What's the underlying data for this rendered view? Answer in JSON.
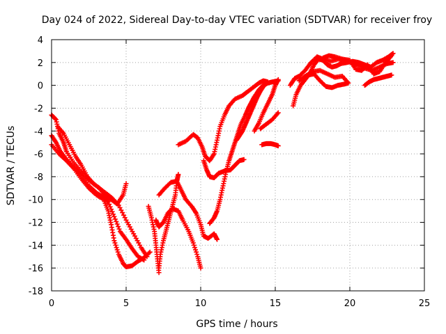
{
  "chart_data": {
    "type": "scatter",
    "title": "Day 024 of 2022, Sidereal Day-to-day VTEC variation (SDTVAR) for receiver froy",
    "xlabel": "GPS time / hours",
    "ylabel": "SDTVAR / TECUs",
    "xlim": [
      0,
      25
    ],
    "ylim": [
      -18,
      4
    ],
    "xticks": [
      0,
      5,
      10,
      15,
      20,
      25
    ],
    "yticks": [
      -18,
      -16,
      -14,
      -12,
      -10,
      -8,
      -6,
      -4,
      -2,
      0,
      2,
      4
    ],
    "grid": true,
    "marker": "+",
    "color": "#ff0000",
    "series": [
      {
        "points": [
          [
            0.0,
            -2.6
          ],
          [
            0.3,
            -3.0
          ],
          [
            0.5,
            -4.2
          ],
          [
            0.8,
            -5.0
          ],
          [
            1.0,
            -5.8
          ],
          [
            1.5,
            -6.8
          ],
          [
            2.0,
            -7.6
          ],
          [
            2.5,
            -8.3
          ],
          [
            3.0,
            -8.8
          ],
          [
            3.5,
            -9.3
          ],
          [
            4.0,
            -9.8
          ],
          [
            4.5,
            -10.5
          ],
          [
            5.0,
            -11.8
          ],
          [
            5.5,
            -13.0
          ],
          [
            6.0,
            -14.2
          ],
          [
            6.4,
            -15.0
          ]
        ]
      },
      {
        "points": [
          [
            0.0,
            -4.4
          ],
          [
            0.3,
            -5.0
          ],
          [
            0.6,
            -5.8
          ],
          [
            1.0,
            -6.5
          ],
          [
            1.5,
            -7.2
          ],
          [
            2.0,
            -7.9
          ],
          [
            2.5,
            -8.8
          ],
          [
            3.0,
            -9.4
          ],
          [
            3.5,
            -9.8
          ],
          [
            3.8,
            -10.2
          ],
          [
            4.2,
            -11.5
          ],
          [
            4.6,
            -12.8
          ],
          [
            5.0,
            -13.5
          ],
          [
            5.4,
            -14.3
          ],
          [
            5.8,
            -15.0
          ],
          [
            6.2,
            -15.3
          ]
        ]
      },
      {
        "points": [
          [
            0.0,
            -5.2
          ],
          [
            0.5,
            -6.0
          ],
          [
            1.0,
            -6.6
          ],
          [
            1.5,
            -7.3
          ],
          [
            2.0,
            -8.2
          ],
          [
            2.5,
            -9.0
          ],
          [
            3.0,
            -9.6
          ],
          [
            3.5,
            -10.0
          ],
          [
            3.8,
            -11.0
          ],
          [
            4.0,
            -12.2
          ],
          [
            4.2,
            -13.6
          ],
          [
            4.5,
            -14.8
          ],
          [
            4.8,
            -15.6
          ],
          [
            5.0,
            -15.9
          ],
          [
            5.4,
            -15.8
          ],
          [
            5.8,
            -15.4
          ],
          [
            6.2,
            -15.1
          ],
          [
            6.6,
            -14.6
          ]
        ]
      },
      {
        "points": [
          [
            0.4,
            -3.6
          ],
          [
            0.8,
            -4.2
          ],
          [
            1.2,
            -5.2
          ],
          [
            1.6,
            -6.2
          ],
          [
            2.0,
            -7.0
          ],
          [
            2.4,
            -8.0
          ],
          [
            2.8,
            -8.6
          ],
          [
            3.2,
            -9.0
          ],
          [
            3.6,
            -9.6
          ],
          [
            4.0,
            -10.0
          ],
          [
            4.4,
            -10.4
          ],
          [
            4.8,
            -9.6
          ],
          [
            5.0,
            -8.6
          ]
        ]
      },
      {
        "points": [
          [
            6.5,
            -10.6
          ],
          [
            6.7,
            -11.6
          ],
          [
            6.9,
            -12.8
          ],
          [
            7.0,
            -14.0
          ],
          [
            7.1,
            -15.2
          ],
          [
            7.2,
            -16.4
          ]
        ]
      },
      {
        "points": [
          [
            7.2,
            -16.0
          ],
          [
            7.3,
            -14.8
          ],
          [
            7.5,
            -13.6
          ],
          [
            7.7,
            -12.6
          ],
          [
            7.9,
            -11.6
          ],
          [
            8.1,
            -10.6
          ],
          [
            8.3,
            -9.6
          ],
          [
            8.4,
            -8.4
          ],
          [
            8.5,
            -7.8
          ]
        ]
      },
      {
        "points": [
          [
            7.0,
            -11.8
          ],
          [
            7.2,
            -12.4
          ],
          [
            7.5,
            -12.0
          ],
          [
            7.8,
            -11.2
          ],
          [
            8.1,
            -10.8
          ],
          [
            8.5,
            -11.0
          ],
          [
            8.8,
            -11.8
          ],
          [
            9.2,
            -12.8
          ],
          [
            9.5,
            -13.8
          ],
          [
            9.8,
            -15.0
          ],
          [
            10.0,
            -16.0
          ]
        ]
      },
      {
        "points": [
          [
            7.2,
            -9.6
          ],
          [
            7.6,
            -9.0
          ],
          [
            8.0,
            -8.5
          ],
          [
            8.4,
            -8.4
          ],
          [
            8.7,
            -9.2
          ],
          [
            9.0,
            -10.0
          ],
          [
            9.4,
            -10.6
          ],
          [
            9.7,
            -11.2
          ],
          [
            10.0,
            -12.2
          ],
          [
            10.2,
            -13.2
          ],
          [
            10.5,
            -13.4
          ],
          [
            10.9,
            -13.0
          ],
          [
            11.1,
            -13.5
          ]
        ]
      },
      {
        "points": [
          [
            8.5,
            -5.2
          ],
          [
            9.0,
            -4.9
          ],
          [
            9.5,
            -4.3
          ],
          [
            9.8,
            -4.6
          ],
          [
            10.1,
            -5.4
          ],
          [
            10.3,
            -6.2
          ],
          [
            10.6,
            -6.6
          ],
          [
            10.9,
            -6.0
          ],
          [
            11.1,
            -4.8
          ],
          [
            11.3,
            -3.6
          ],
          [
            11.6,
            -2.6
          ],
          [
            11.9,
            -1.8
          ],
          [
            12.3,
            -1.2
          ],
          [
            12.8,
            -0.9
          ],
          [
            13.1,
            -0.6
          ],
          [
            13.5,
            -0.2
          ],
          [
            13.9,
            0.2
          ],
          [
            14.2,
            0.4
          ],
          [
            14.5,
            0.3
          ]
        ]
      },
      {
        "points": [
          [
            10.2,
            -6.6
          ],
          [
            10.4,
            -7.4
          ],
          [
            10.6,
            -8.0
          ],
          [
            10.9,
            -8.1
          ],
          [
            11.2,
            -7.7
          ],
          [
            11.6,
            -7.5
          ],
          [
            12.0,
            -7.4
          ],
          [
            12.3,
            -7.0
          ],
          [
            12.6,
            -6.6
          ],
          [
            12.9,
            -6.5
          ]
        ]
      },
      {
        "points": [
          [
            10.6,
            -12.1
          ],
          [
            10.9,
            -11.6
          ],
          [
            11.1,
            -11.0
          ],
          [
            11.3,
            -10.0
          ],
          [
            11.5,
            -8.8
          ],
          [
            11.7,
            -7.6
          ],
          [
            11.9,
            -6.6
          ],
          [
            12.1,
            -5.8
          ],
          [
            12.3,
            -5.0
          ],
          [
            12.5,
            -4.2
          ],
          [
            12.7,
            -3.4
          ],
          [
            13.0,
            -2.6
          ],
          [
            13.2,
            -2.0
          ],
          [
            13.4,
            -1.5
          ],
          [
            13.6,
            -1.0
          ],
          [
            13.9,
            -0.4
          ],
          [
            14.2,
            0.0
          ],
          [
            14.5,
            0.2
          ],
          [
            14.8,
            0.3
          ],
          [
            15.2,
            0.4
          ]
        ]
      },
      {
        "points": [
          [
            12.4,
            -4.8
          ],
          [
            12.6,
            -4.4
          ],
          [
            12.8,
            -4.0
          ],
          [
            13.0,
            -3.4
          ],
          [
            13.2,
            -2.8
          ],
          [
            13.4,
            -2.2
          ],
          [
            13.6,
            -1.6
          ],
          [
            13.8,
            -1.0
          ],
          [
            14.0,
            -0.5
          ],
          [
            14.2,
            -0.1
          ],
          [
            14.4,
            0.2
          ]
        ]
      },
      {
        "points": [
          [
            13.6,
            -4.0
          ],
          [
            13.9,
            -3.3
          ],
          [
            14.2,
            -2.4
          ],
          [
            14.5,
            -1.6
          ],
          [
            14.8,
            -0.8
          ],
          [
            15.0,
            0.0
          ],
          [
            15.2,
            0.5
          ]
        ]
      },
      {
        "points": [
          [
            14.1,
            -5.2
          ],
          [
            14.4,
            -5.1
          ],
          [
            14.7,
            -5.1
          ],
          [
            15.0,
            -5.2
          ],
          [
            15.2,
            -5.3
          ]
        ]
      },
      {
        "points": [
          [
            14.0,
            -3.8
          ],
          [
            14.4,
            -3.4
          ],
          [
            14.8,
            -3.0
          ],
          [
            15.2,
            -2.4
          ]
        ]
      },
      {
        "points": [
          [
            16.2,
            -1.8
          ],
          [
            16.4,
            -0.8
          ],
          [
            16.7,
            0.0
          ],
          [
            17.0,
            0.5
          ],
          [
            17.3,
            1.0
          ],
          [
            17.6,
            1.8
          ],
          [
            17.9,
            2.3
          ],
          [
            18.2,
            2.2
          ],
          [
            18.5,
            1.8
          ],
          [
            18.8,
            1.6
          ],
          [
            19.1,
            1.7
          ],
          [
            19.4,
            1.9
          ],
          [
            19.8,
            2.0
          ],
          [
            20.2,
            2.1
          ],
          [
            20.6,
            2.0
          ],
          [
            21.0,
            1.8
          ],
          [
            21.4,
            1.6
          ],
          [
            21.8,
            2.0
          ],
          [
            22.2,
            2.2
          ],
          [
            22.6,
            2.5
          ],
          [
            22.9,
            2.8
          ]
        ]
      },
      {
        "points": [
          [
            16.0,
            0.0
          ],
          [
            16.3,
            0.6
          ],
          [
            16.6,
            0.8
          ],
          [
            17.0,
            1.3
          ],
          [
            17.4,
            2.0
          ],
          [
            17.8,
            2.5
          ],
          [
            18.2,
            2.3
          ],
          [
            18.7,
            2.1
          ],
          [
            19.2,
            2.3
          ],
          [
            19.7,
            2.2
          ],
          [
            20.1,
            2.0
          ],
          [
            20.5,
            1.8
          ],
          [
            21.0,
            1.5
          ],
          [
            21.5,
            1.3
          ],
          [
            22.0,
            1.6
          ],
          [
            22.5,
            1.9
          ],
          [
            22.9,
            2.0
          ]
        ]
      },
      {
        "points": [
          [
            16.6,
            0.4
          ],
          [
            17.0,
            0.8
          ],
          [
            17.5,
            1.2
          ],
          [
            18.0,
            1.3
          ],
          [
            18.5,
            1.0
          ],
          [
            19.0,
            0.7
          ],
          [
            19.5,
            0.8
          ],
          [
            19.9,
            0.2
          ],
          [
            19.6,
            0.1
          ],
          [
            19.2,
            0.0
          ],
          [
            18.8,
            -0.2
          ],
          [
            18.4,
            -0.1
          ],
          [
            18.0,
            0.4
          ],
          [
            17.6,
            1.0
          ],
          [
            17.2,
            0.9
          ],
          [
            16.9,
            0.6
          ]
        ]
      },
      {
        "points": [
          [
            18.2,
            2.4
          ],
          [
            18.6,
            2.6
          ],
          [
            19.0,
            2.5
          ],
          [
            19.5,
            2.3
          ],
          [
            20.0,
            2.2
          ],
          [
            20.4,
            1.4
          ],
          [
            20.8,
            1.3
          ],
          [
            21.2,
            1.8
          ],
          [
            21.6,
            1.0
          ],
          [
            22.0,
            1.2
          ],
          [
            22.4,
            2.0
          ],
          [
            22.8,
            2.6
          ]
        ]
      },
      {
        "points": [
          [
            21.0,
            0.0
          ],
          [
            21.3,
            0.3
          ],
          [
            21.6,
            0.5
          ],
          [
            21.9,
            0.6
          ],
          [
            22.2,
            0.7
          ],
          [
            22.5,
            0.8
          ],
          [
            22.8,
            0.9
          ]
        ]
      }
    ]
  }
}
